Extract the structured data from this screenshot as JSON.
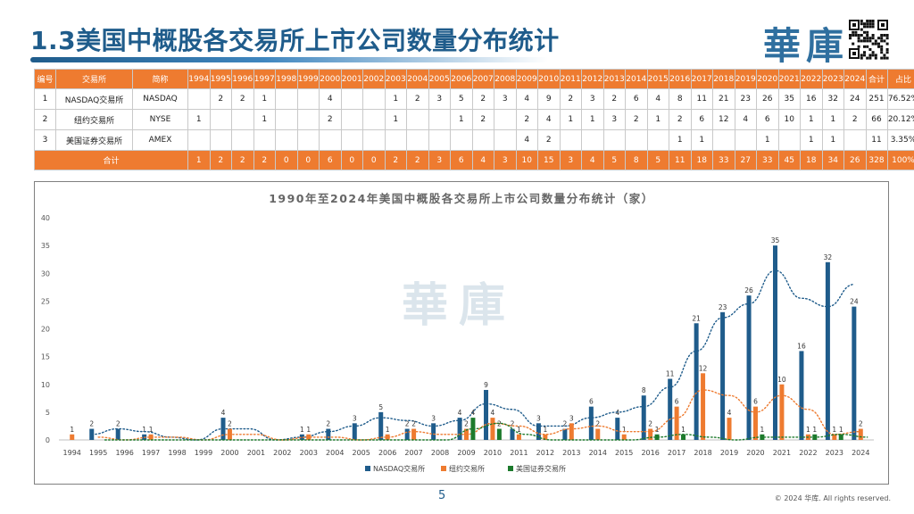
{
  "header": {
    "title": "1.3美国中概股各交易所上市公司数量分布统计",
    "logo_text": "華庫"
  },
  "colors": {
    "nasdaq": "#1f5c8b",
    "nyse": "#ee7b30",
    "amex": "#1c7a2c",
    "table_header": "#ee7b30"
  },
  "table": {
    "headers": [
      "编号",
      "交易所",
      "简称",
      "1994",
      "1995",
      "1996",
      "1997",
      "1998",
      "1999",
      "2000",
      "2001",
      "2002",
      "2003",
      "2004",
      "2005",
      "2006",
      "2007",
      "2008",
      "2009",
      "2010",
      "2011",
      "2012",
      "2013",
      "2014",
      "2015",
      "2016",
      "2017",
      "2018",
      "2019",
      "2020",
      "2021",
      "2022",
      "2023",
      "2024",
      "合计",
      "占比"
    ],
    "rows": [
      [
        "1",
        "NASDAQ交易所",
        "NASDAQ",
        "",
        "2",
        "2",
        "1",
        "",
        "",
        "4",
        "",
        "",
        "1",
        "2",
        "3",
        "5",
        "2",
        "3",
        "4",
        "9",
        "2",
        "3",
        "2",
        "6",
        "4",
        "8",
        "11",
        "21",
        "23",
        "26",
        "35",
        "16",
        "32",
        "24",
        "251",
        "76.52%"
      ],
      [
        "2",
        "纽约交易所",
        "NYSE",
        "1",
        "",
        "",
        "1",
        "",
        "",
        "2",
        "",
        "",
        "1",
        "",
        "",
        "1",
        "2",
        "",
        "2",
        "4",
        "1",
        "1",
        "3",
        "2",
        "1",
        "2",
        "6",
        "12",
        "4",
        "6",
        "10",
        "1",
        "1",
        "2",
        "66",
        "20.12%"
      ],
      [
        "3",
        "美国证券交易所",
        "AMEX",
        "",
        "",
        "",
        "",
        "",
        "",
        "",
        "",
        "",
        "",
        "",
        "",
        "",
        "",
        "",
        "4",
        "2",
        "",
        "",
        "",
        "",
        "",
        "1",
        "1",
        "",
        "",
        "1",
        "",
        "1",
        "1",
        "",
        "11",
        "3.35%"
      ]
    ],
    "total_label": "合计",
    "totals": [
      "1",
      "2",
      "2",
      "2",
      "0",
      "0",
      "6",
      "0",
      "0",
      "2",
      "2",
      "3",
      "6",
      "4",
      "3",
      "10",
      "15",
      "3",
      "4",
      "5",
      "8",
      "5",
      "11",
      "18",
      "33",
      "27",
      "33",
      "45",
      "18",
      "34",
      "26",
      "328",
      "100%"
    ]
  },
  "chart_data": {
    "type": "bar",
    "title": "1990年至2024年美国中概股各交易所上市公司数量分布统计（家）",
    "categories": [
      "1994",
      "1995",
      "1996",
      "1997",
      "1998",
      "1999",
      "2000",
      "2001",
      "2002",
      "2003",
      "2004",
      "2005",
      "2006",
      "2007",
      "2008",
      "2009",
      "2010",
      "2011",
      "2012",
      "2013",
      "2014",
      "2015",
      "2016",
      "2017",
      "2018",
      "2019",
      "2020",
      "2021",
      "2022",
      "2023",
      "2024"
    ],
    "ylim": [
      0,
      40
    ],
    "yticks": [
      0,
      5,
      10,
      15,
      20,
      25,
      30,
      35,
      40
    ],
    "grid": false,
    "legend_position": "bottom",
    "trendlines": "dotted two-period moving average per series",
    "series": [
      {
        "name": "NASDAQ交易所",
        "values": [
          0,
          2,
          2,
          1,
          0,
          0,
          4,
          0,
          0,
          1,
          2,
          3,
          5,
          2,
          3,
          4,
          9,
          2,
          3,
          2,
          6,
          4,
          8,
          11,
          21,
          23,
          26,
          35,
          16,
          32,
          24
        ]
      },
      {
        "name": "纽约交易所",
        "values": [
          1,
          0,
          0,
          1,
          0,
          0,
          2,
          0,
          0,
          1,
          0,
          0,
          1,
          2,
          0,
          2,
          4,
          1,
          1,
          3,
          2,
          1,
          2,
          6,
          12,
          4,
          6,
          10,
          1,
          1,
          2
        ]
      },
      {
        "name": "美国证券交易所",
        "values": [
          0,
          0,
          0,
          0,
          0,
          0,
          0,
          0,
          0,
          0,
          0,
          0,
          0,
          0,
          0,
          4,
          2,
          0,
          0,
          0,
          0,
          0,
          1,
          1,
          0,
          0,
          1,
          0,
          1,
          1,
          0
        ]
      }
    ]
  },
  "footer": {
    "page_number": "5",
    "copyright": "© 2024 华库. All rights reserved."
  }
}
